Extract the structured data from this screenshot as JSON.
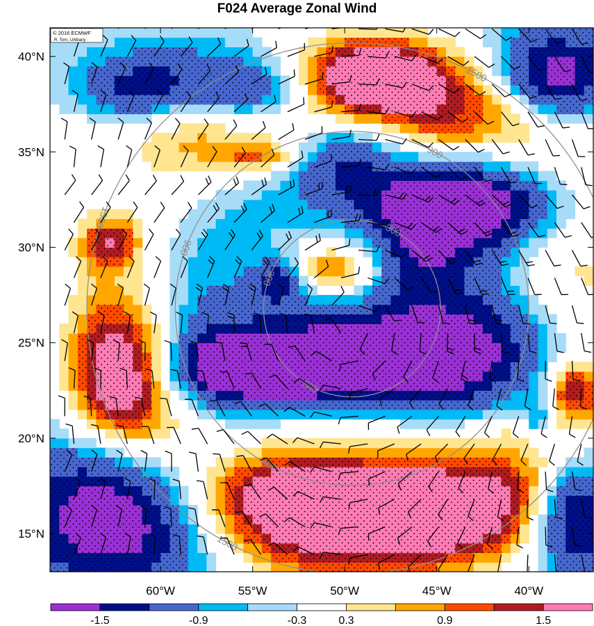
{
  "title": "F024 Average Zonal Wind",
  "credit": {
    "line1": "© 2016 ECMWF",
    "line2": "R. Torn, UAlbany"
  },
  "map": {
    "lon_range": [
      -66,
      -36.5
    ],
    "lat_range": [
      13,
      41.5
    ],
    "lon_ticks": [
      {
        "value": -60,
        "label": "60°W"
      },
      {
        "value": -55,
        "label": "55°W"
      },
      {
        "value": -50,
        "label": "50°W"
      },
      {
        "value": -45,
        "label": "45°W"
      },
      {
        "value": -40,
        "label": "40°W"
      }
    ],
    "lat_ticks": [
      {
        "value": 40,
        "label": "40°N"
      },
      {
        "value": 35,
        "label": "35°N"
      },
      {
        "value": 30,
        "label": "30°N"
      },
      {
        "value": 25,
        "label": "25°N"
      },
      {
        "value": 20,
        "label": "20°N"
      },
      {
        "value": 15,
        "label": "15°N"
      }
    ],
    "center": {
      "lon": -49.6,
      "lat": 26.8
    },
    "range_rings": [
      {
        "radius_deg": 4.8,
        "label": "300"
      },
      {
        "radius_deg": 9.6,
        "label": "900"
      },
      {
        "radius_deg": 14.4,
        "label": "1500"
      }
    ]
  },
  "colorbar": {
    "colors": [
      "#9a30d6",
      "#000f8a",
      "#4667cf",
      "#00baf5",
      "#a7dcf8",
      "#ffffff",
      "#ffe58f",
      "#ffa700",
      "#ff4a00",
      "#b01c21",
      "#ff7cb4"
    ],
    "labels": [
      {
        "after_index": 0,
        "label": "-1.5"
      },
      {
        "after_index": 2,
        "label": "-0.9"
      },
      {
        "after_index": 4,
        "label": "-0.3"
      },
      {
        "after_index": 5,
        "label": "0.3"
      },
      {
        "after_index": 7,
        "label": "0.9"
      },
      {
        "after_index": 9,
        "label": "1.5"
      }
    ]
  },
  "field_colors": {
    "l-2": "#9a30d6",
    "l-1.5": "#000f8a",
    "l-1.2": "#4667cf",
    "l-0.9": "#4667cf",
    "l-0.6": "#00baf5",
    "l-0.3": "#a7dcf8",
    "l0.3": "#ffe58f",
    "l0.6": "#ffa700",
    "l0.9": "#ff4a00",
    "l1.2": "#b01c21",
    "l1.5": "#ff7cb4"
  },
  "anomaly_blobs": [
    {
      "lon": -49.5,
      "lat": 29.5,
      "rlon": 8,
      "rlat": 5,
      "v": 0.6
    },
    {
      "lon": -48,
      "lat": 36.5,
      "rlon": 15,
      "rlat": 3.2,
      "v": 1.5
    },
    {
      "lon": -57,
      "lat": 38.5,
      "rlon": 7,
      "rlat": 2.2,
      "v": -1.8
    },
    {
      "lon": -61.5,
      "lat": 38.2,
      "rlon": 2.6,
      "rlat": 1.6,
      "v": -0.8
    },
    {
      "lon": -55,
      "lat": 38,
      "rlon": 2.8,
      "rlat": 1.6,
      "v": -0.8
    },
    {
      "lon": -48.5,
      "lat": 39,
      "rlon": 3.5,
      "rlat": 1.8,
      "v": 2.2
    },
    {
      "lon": -38.5,
      "lat": 38.8,
      "rlon": 3.5,
      "rlat": 2.6,
      "v": -2.5
    },
    {
      "lon": -50,
      "lat": 35,
      "rlon": 3.2,
      "rlat": 2,
      "v": -1.5
    },
    {
      "lon": -44,
      "lat": 32.2,
      "rlon": 6,
      "rlat": 2.3,
      "v": -2.4
    },
    {
      "lon": -46,
      "lat": 29,
      "rlon": 2.5,
      "rlat": 2.5,
      "v": -1.3
    },
    {
      "lon": -50.5,
      "lat": 28.8,
      "rlon": 2,
      "rlat": 1.2,
      "v": 1.0
    },
    {
      "lon": -53.5,
      "lat": 28.2,
      "rlon": 1.3,
      "rlat": 1.2,
      "v": -1.5
    },
    {
      "lon": -48,
      "lat": 24.6,
      "rlon": 7,
      "rlat": 2.8,
      "v": -2.6
    },
    {
      "lon": -55,
      "lat": 23.8,
      "rlon": 5,
      "rlat": 1.6,
      "v": -2.0
    },
    {
      "lon": -62,
      "lat": 23.4,
      "rlon": 2.9,
      "rlat": 3.4,
      "v": 2.1
    },
    {
      "lon": -62.8,
      "lat": 30.2,
      "rlon": 1.6,
      "rlat": 1.3,
      "v": 1.3
    },
    {
      "lon": -54.5,
      "lat": 34.8,
      "rlon": 2.2,
      "rlat": 0.7,
      "v": 0.9
    },
    {
      "lon": -49.5,
      "lat": 16.8,
      "rlon": 10,
      "rlat": 3.4,
      "v": 2.7
    },
    {
      "lon": -53,
      "lat": 17.6,
      "rlon": 4,
      "rlat": 2,
      "v": 0.6
    },
    {
      "lon": -44.5,
      "lat": 16.2,
      "rlon": 3,
      "rlat": 2,
      "v": 0.6
    },
    {
      "lon": -49.5,
      "lat": 20.5,
      "rlon": 10,
      "rlat": 1.1,
      "v": 0.5
    },
    {
      "lon": -62,
      "lat": 16,
      "rlon": 6,
      "rlat": 3.8,
      "v": -2.7
    },
    {
      "lon": -37.5,
      "lat": 16,
      "rlon": 2.2,
      "rlat": 3.2,
      "v": -2.3
    },
    {
      "lon": -37.5,
      "lat": 22.5,
      "rlon": 1.4,
      "rlat": 1.4,
      "v": 1.4
    },
    {
      "lon": -39.5,
      "lat": 21,
      "rlon": 0.8,
      "rlat": 1.2,
      "v": -1.0
    },
    {
      "lon": -61,
      "lat": 34,
      "rlon": 3,
      "rlat": 2.5,
      "v": -0.4
    },
    {
      "lon": -39.5,
      "lat": 29,
      "rlon": 2.5,
      "rlat": 3,
      "v": 0.5
    },
    {
      "lon": -40.5,
      "lat": 34.5,
      "rlon": 4,
      "rlat": 2.2,
      "v": -0.5
    }
  ]
}
